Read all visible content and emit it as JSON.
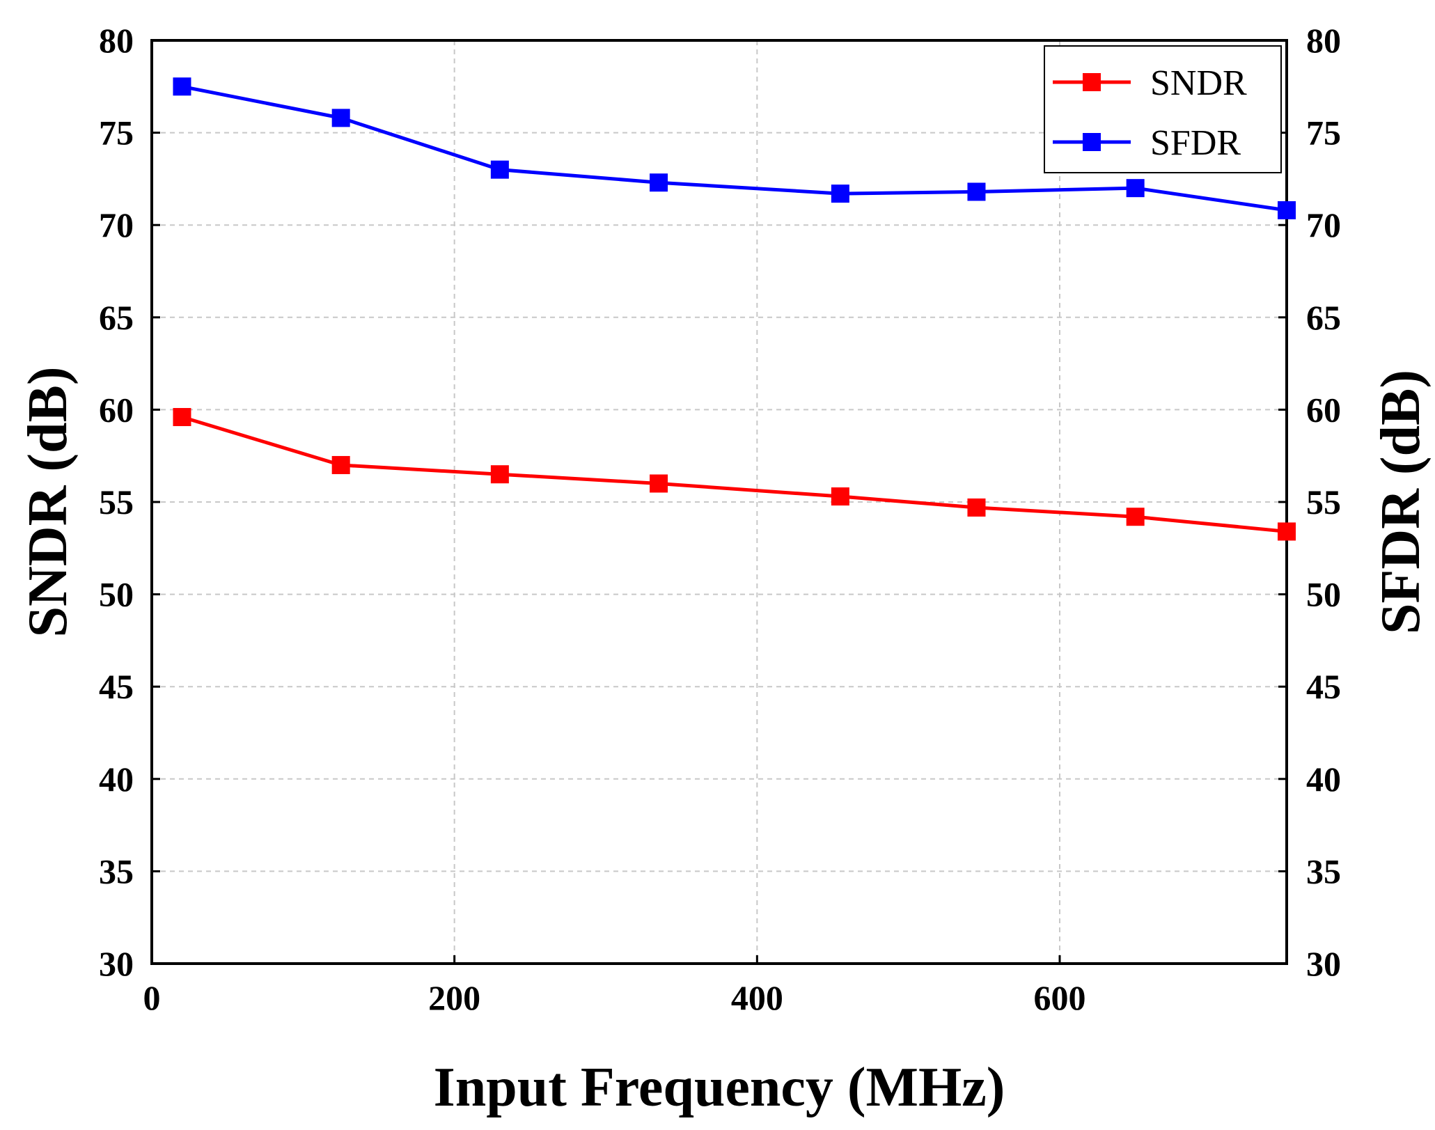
{
  "chart_data": {
    "type": "line",
    "xlabel": "Input Frequency (MHz)",
    "ylabel_left": "SNDR (dB)",
    "ylabel_right": "SFDR (dB)",
    "xlim": [
      0,
      750
    ],
    "ylim": [
      30,
      80
    ],
    "xticks": [
      0,
      200,
      400,
      600
    ],
    "yticks": [
      30,
      35,
      40,
      45,
      50,
      55,
      60,
      65,
      70,
      75,
      80
    ],
    "grid": true,
    "legend_position": "top-right",
    "x": [
      20,
      125,
      230,
      335,
      455,
      545,
      650,
      750
    ],
    "series": [
      {
        "name": "SNDR",
        "axis": "left",
        "color": "#ff0000",
        "values": [
          59.6,
          57.0,
          56.5,
          56.0,
          55.3,
          54.7,
          54.2,
          53.4
        ]
      },
      {
        "name": "SFDR",
        "axis": "right",
        "color": "#0000ff",
        "values": [
          77.5,
          75.8,
          73.0,
          72.3,
          71.7,
          71.8,
          72.0,
          70.8
        ]
      }
    ]
  }
}
